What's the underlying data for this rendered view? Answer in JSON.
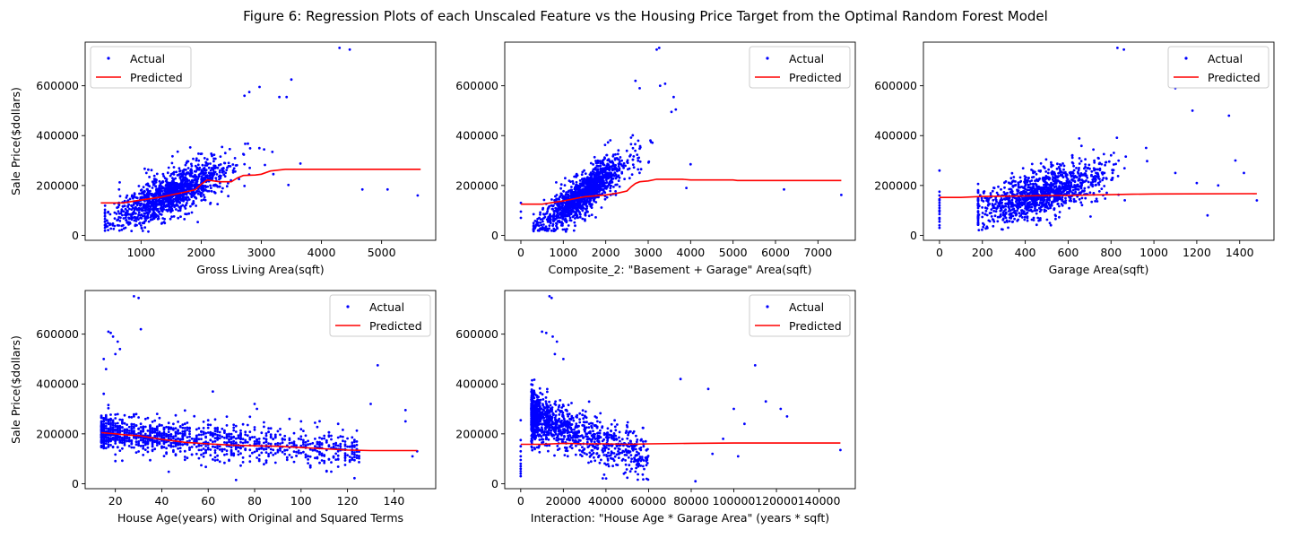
{
  "figure": {
    "suptitle": "Figure 6: Regression Plots of each Unscaled Feature vs the Housing Price Target from the Optimal Random Forest Model",
    "colors": {
      "actual": "#0000ff",
      "predicted": "#ff0000",
      "axis": "#000000"
    }
  },
  "chart_data": [
    {
      "type": "scatter",
      "title": "",
      "xlabel": "Gross Living Area(sqft)",
      "ylabel": "Sale Price($dollars)",
      "xlim": [
        70,
        5900
      ],
      "ylim": [
        -20000,
        775000
      ],
      "xticks": [
        1000,
        2000,
        3000,
        4000,
        5000
      ],
      "yticks": [
        0,
        200000,
        400000,
        600000
      ],
      "legend": {
        "position": "upper left",
        "entries": [
          "Actual",
          "Predicted"
        ]
      },
      "series": [
        {
          "name": "Actual",
          "kind": "scatter",
          "cloud": {
            "xmin": 400,
            "xmax": 3200,
            "intercept": 10000,
            "slope": 105,
            "noise": 42000,
            "n": 1300,
            "seed": 11,
            "xshape": "normal",
            "xmean": 1500,
            "xsd": 480
          },
          "points": [
            [
              4300,
              752000
            ],
            [
              4470,
              745000
            ],
            [
              4680,
              184000
            ],
            [
              5100,
              184000
            ],
            [
              5600,
              160000
            ],
            [
              3500,
              625000
            ],
            [
              3420,
              555000
            ],
            [
              3300,
              555000
            ],
            [
              3650,
              288000
            ],
            [
              3450,
              202000
            ],
            [
              2970,
              595000
            ],
            [
              2720,
              560000
            ],
            [
              3060,
              282000
            ],
            [
              2800,
              575000
            ]
          ]
        },
        {
          "name": "Predicted",
          "kind": "line",
          "points": [
            [
              330,
              130000
            ],
            [
              700,
              130000
            ],
            [
              900,
              138000
            ],
            [
              1100,
              145000
            ],
            [
              1300,
              152000
            ],
            [
              1500,
              162000
            ],
            [
              1700,
              172000
            ],
            [
              1900,
              183000
            ],
            [
              2000,
              205000
            ],
            [
              2100,
              222000
            ],
            [
              2300,
              215000
            ],
            [
              2500,
              215000
            ],
            [
              2600,
              230000
            ],
            [
              2700,
              240000
            ],
            [
              2900,
              242000
            ],
            [
              3000,
              245000
            ],
            [
              3150,
              258000
            ],
            [
              3300,
              262000
            ],
            [
              3400,
              265000
            ],
            [
              5650,
              265000
            ]
          ]
        }
      ]
    },
    {
      "type": "scatter",
      "title": "",
      "xlabel": "Composite_2: \"Basement + Garage\" Area(sqft)",
      "ylabel": "",
      "xlim": [
        -380,
        7880
      ],
      "ylim": [
        -20000,
        775000
      ],
      "xticks": [
        0,
        1000,
        2000,
        3000,
        4000,
        5000,
        6000,
        7000
      ],
      "yticks": [
        0,
        200000,
        400000,
        600000
      ],
      "legend": {
        "position": "upper right",
        "entries": [
          "Actual",
          "Predicted"
        ]
      },
      "series": [
        {
          "name": "Actual",
          "kind": "scatter",
          "cloud": {
            "xmin": 300,
            "xmax": 3100,
            "intercept": -20000,
            "slope": 125,
            "noise": 38000,
            "n": 1300,
            "seed": 23,
            "xshape": "normal",
            "xmean": 1500,
            "xsd": 500
          },
          "points": [
            [
              3260,
              752000
            ],
            [
              3200,
              745000
            ],
            [
              3400,
              608000
            ],
            [
              3280,
              600000
            ],
            [
              3600,
              555000
            ],
            [
              3650,
              505000
            ],
            [
              3550,
              495000
            ],
            [
              4000,
              285000
            ],
            [
              3900,
              190000
            ],
            [
              6200,
              184000
            ],
            [
              7550,
              162000
            ],
            [
              0,
              95000
            ],
            [
              0,
              130000
            ],
            [
              0,
              70000
            ],
            [
              2700,
              620000
            ],
            [
              2800,
              590000
            ]
          ]
        },
        {
          "name": "Predicted",
          "kind": "line",
          "points": [
            [
              0,
              125000
            ],
            [
              500,
              125000
            ],
            [
              1000,
              138000
            ],
            [
              1500,
              155000
            ],
            [
              2000,
              162000
            ],
            [
              2300,
              170000
            ],
            [
              2500,
              178000
            ],
            [
              2600,
              195000
            ],
            [
              2700,
              208000
            ],
            [
              2800,
              215000
            ],
            [
              3000,
              218000
            ],
            [
              3200,
              225000
            ],
            [
              3800,
              225000
            ],
            [
              4000,
              222000
            ],
            [
              5000,
              222000
            ],
            [
              5100,
              220000
            ],
            [
              7550,
              220000
            ]
          ]
        }
      ]
    },
    {
      "type": "scatter",
      "title": "",
      "xlabel": "Garage Area(sqft)",
      "ylabel": "",
      "xlim": [
        -75,
        1560
      ],
      "ylim": [
        -20000,
        775000
      ],
      "xticks": [
        0,
        200,
        400,
        600,
        800,
        1000,
        1200,
        1400
      ],
      "yticks": [
        0,
        200000,
        400000,
        600000
      ],
      "legend": {
        "position": "upper right",
        "entries": [
          "Actual",
          "Predicted"
        ]
      },
      "series": [
        {
          "name": "Actual",
          "kind": "scatter",
          "cloud": {
            "xmin": 180,
            "xmax": 1050,
            "intercept": 60000,
            "slope": 230,
            "noise": 45000,
            "n": 1200,
            "seed": 37,
            "xshape": "normal",
            "xmean": 480,
            "xsd": 160
          },
          "points": [
            [
              0,
              40000
            ],
            [
              0,
              55000
            ],
            [
              0,
              70000
            ],
            [
              0,
              85000
            ],
            [
              0,
              95000
            ],
            [
              0,
              110000
            ],
            [
              0,
              120000
            ],
            [
              0,
              130000
            ],
            [
              0,
              145000
            ],
            [
              0,
              160000
            ],
            [
              0,
              175000
            ],
            [
              0,
              260000
            ],
            [
              0,
              30000
            ],
            [
              0,
              65000
            ],
            [
              0,
              100000
            ],
            [
              0,
              140000
            ],
            [
              830,
              752000
            ],
            [
              860,
              745000
            ],
            [
              1100,
              590000
            ],
            [
              1180,
              500000
            ],
            [
              1350,
              480000
            ],
            [
              1420,
              250000
            ],
            [
              1480,
              140000
            ],
            [
              1250,
              80000
            ],
            [
              1300,
              200000
            ],
            [
              1200,
              210000
            ],
            [
              1380,
              300000
            ],
            [
              1100,
              250000
            ]
          ]
        },
        {
          "name": "Predicted",
          "kind": "line",
          "points": [
            [
              0,
              152000
            ],
            [
              100,
              152000
            ],
            [
              200,
              156000
            ],
            [
              300,
              157000
            ],
            [
              400,
              158000
            ],
            [
              500,
              160000
            ],
            [
              600,
              160000
            ],
            [
              700,
              162000
            ],
            [
              800,
              163000
            ],
            [
              900,
              165000
            ],
            [
              1000,
              166000
            ],
            [
              1480,
              167000
            ]
          ]
        }
      ]
    },
    {
      "type": "scatter",
      "title": "",
      "xlabel": "House Age(years) with Original and Squared Terms",
      "ylabel": "Sale Price($dollars)",
      "xlim": [
        7,
        158
      ],
      "ylim": [
        -20000,
        775000
      ],
      "xticks": [
        20,
        40,
        60,
        80,
        100,
        120,
        140
      ],
      "yticks": [
        0,
        200000,
        400000,
        600000
      ],
      "legend": {
        "position": "upper right",
        "entries": [
          "Actual",
          "Predicted"
        ]
      },
      "series": [
        {
          "name": "Actual",
          "kind": "scatter",
          "cloud": {
            "xmin": 14,
            "xmax": 125,
            "intercept": 215000,
            "slope": -700,
            "noise": 35000,
            "n": 1200,
            "seed": 51,
            "xshape": "skew",
            "integerx": true
          },
          "points": [
            [
              28,
              752000
            ],
            [
              30,
              745000
            ],
            [
              31,
              620000
            ],
            [
              17,
              610000
            ],
            [
              18,
              605000
            ],
            [
              19,
              590000
            ],
            [
              21,
              570000
            ],
            [
              22,
              540000
            ],
            [
              20,
              520000
            ],
            [
              15,
              500000
            ],
            [
              16,
              460000
            ],
            [
              95,
              260000
            ],
            [
              100,
              250000
            ],
            [
              133,
              475000
            ],
            [
              130,
              320000
            ],
            [
              145,
              295000
            ],
            [
              145,
              250000
            ],
            [
              150,
              130000
            ],
            [
              148,
              110000
            ],
            [
              62,
              370000
            ],
            [
              80,
              320000
            ],
            [
              81,
              300000
            ],
            [
              72,
              15000
            ]
          ]
        },
        {
          "name": "Predicted",
          "kind": "line",
          "points": [
            [
              14,
              205000
            ],
            [
              20,
              200000
            ],
            [
              25,
              195000
            ],
            [
              30,
              193000
            ],
            [
              35,
              185000
            ],
            [
              40,
              178000
            ],
            [
              45,
              172000
            ],
            [
              50,
              166000
            ],
            [
              60,
              160000
            ],
            [
              70,
              155000
            ],
            [
              80,
              152000
            ],
            [
              90,
              150000
            ],
            [
              100,
              145000
            ],
            [
              110,
              140000
            ],
            [
              120,
              135000
            ],
            [
              130,
              133000
            ],
            [
              150,
              133000
            ]
          ]
        }
      ]
    },
    {
      "type": "scatter",
      "title": "",
      "xlabel": "Interaction: \"House Age * Garage Area\" (years * sqft)",
      "ylabel": "",
      "xlim": [
        -7500,
        157000
      ],
      "ylim": [
        -20000,
        775000
      ],
      "xticks": [
        0,
        20000,
        40000,
        60000,
        80000,
        100000,
        120000,
        140000
      ],
      "yticks": [
        0,
        200000,
        400000,
        600000
      ],
      "legend": {
        "position": "upper right",
        "entries": [
          "Actual",
          "Predicted"
        ]
      },
      "series": [
        {
          "name": "Actual",
          "kind": "scatter",
          "cloud": {
            "xmin": 5000,
            "xmax": 60000,
            "intercept": 290000,
            "slope": -3.2,
            "noise": 45000,
            "n": 1200,
            "seed": 67,
            "xshape": "skew2"
          },
          "points": [
            [
              0,
              30000
            ],
            [
              0,
              50000
            ],
            [
              0,
              70000
            ],
            [
              0,
              95000
            ],
            [
              0,
              110000
            ],
            [
              0,
              130000
            ],
            [
              0,
              150000
            ],
            [
              0,
              175000
            ],
            [
              0,
              255000
            ],
            [
              0,
              40000
            ],
            [
              0,
              60000
            ],
            [
              0,
              80000
            ],
            [
              13500,
              752000
            ],
            [
              14500,
              745000
            ],
            [
              10000,
              610000
            ],
            [
              12000,
              605000
            ],
            [
              15000,
              590000
            ],
            [
              17000,
              570000
            ],
            [
              16000,
              520000
            ],
            [
              20000,
              500000
            ],
            [
              75000,
              420000
            ],
            [
              88000,
              380000
            ],
            [
              110000,
              475000
            ],
            [
              115000,
              330000
            ],
            [
              122000,
              300000
            ],
            [
              125000,
              270000
            ],
            [
              100000,
              300000
            ],
            [
              150000,
              135000
            ],
            [
              90000,
              120000
            ],
            [
              102000,
              110000
            ],
            [
              82000,
              10000
            ],
            [
              95000,
              180000
            ],
            [
              105000,
              240000
            ]
          ]
        },
        {
          "name": "Predicted",
          "kind": "line",
          "points": [
            [
              0,
              158000
            ],
            [
              10000,
              158000
            ],
            [
              20000,
              162000
            ],
            [
              30000,
              160000
            ],
            [
              40000,
              160000
            ],
            [
              50000,
              158000
            ],
            [
              60000,
              160000
            ],
            [
              80000,
              162000
            ],
            [
              100000,
              163000
            ],
            [
              150000,
              163000
            ]
          ]
        }
      ]
    }
  ]
}
